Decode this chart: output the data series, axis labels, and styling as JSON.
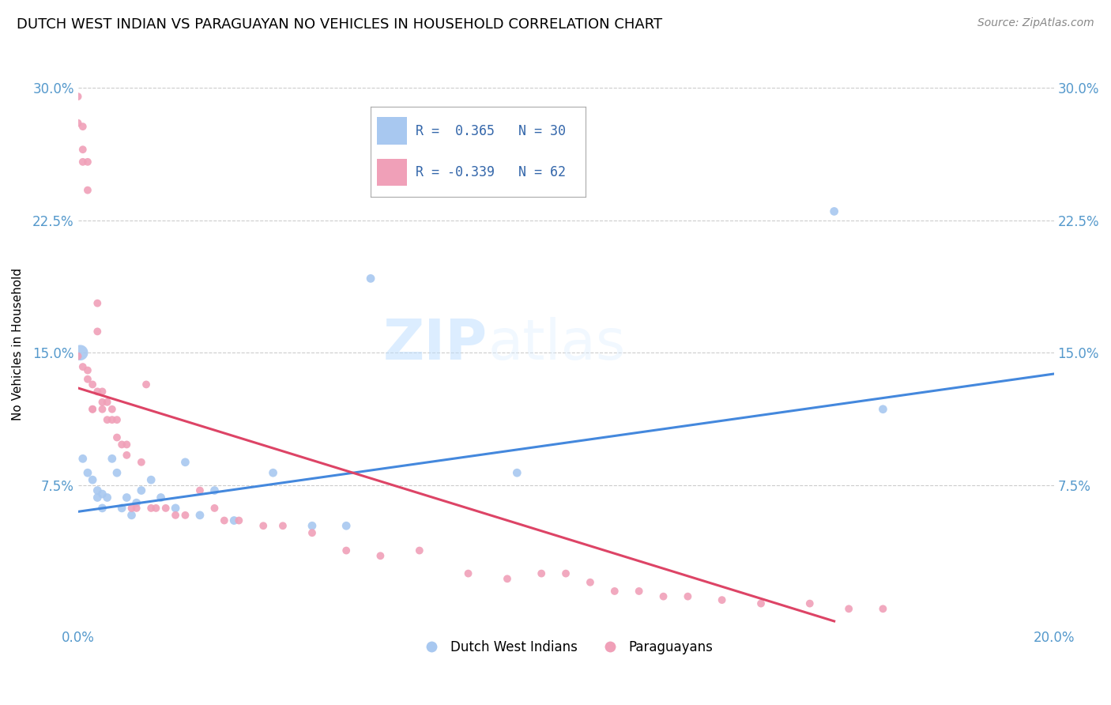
{
  "title": "DUTCH WEST INDIAN VS PARAGUAYAN NO VEHICLES IN HOUSEHOLD CORRELATION CHART",
  "source": "Source: ZipAtlas.com",
  "ylabel": "No Vehicles in Household",
  "x_min": 0.0,
  "x_max": 0.2,
  "y_min": -0.005,
  "y_max": 0.315,
  "y_ticks": [
    0.075,
    0.15,
    0.225,
    0.3
  ],
  "x_ticks": [
    0.0,
    0.2
  ],
  "legend_blue_r": "0.365",
  "legend_blue_n": "30",
  "legend_pink_r": "-0.339",
  "legend_pink_n": "62",
  "blue_color": "#A8C8F0",
  "pink_color": "#F0A0B8",
  "blue_line_color": "#4488DD",
  "pink_line_color": "#DD4466",
  "grid_color": "#CCCCCC",
  "watermark_zip": "ZIP",
  "watermark_atlas": "atlas",
  "blue_scatter_x": [
    0.0005,
    0.001,
    0.002,
    0.003,
    0.004,
    0.004,
    0.005,
    0.005,
    0.006,
    0.007,
    0.008,
    0.009,
    0.01,
    0.011,
    0.012,
    0.013,
    0.015,
    0.017,
    0.02,
    0.022,
    0.025,
    0.028,
    0.032,
    0.04,
    0.048,
    0.055,
    0.06,
    0.09,
    0.155,
    0.165
  ],
  "blue_scatter_y": [
    0.15,
    0.09,
    0.082,
    0.078,
    0.072,
    0.068,
    0.07,
    0.062,
    0.068,
    0.09,
    0.082,
    0.062,
    0.068,
    0.058,
    0.065,
    0.072,
    0.078,
    0.068,
    0.062,
    0.088,
    0.058,
    0.072,
    0.055,
    0.082,
    0.052,
    0.052,
    0.192,
    0.082,
    0.23,
    0.118
  ],
  "blue_scatter_sizes": [
    200,
    60,
    60,
    60,
    60,
    60,
    60,
    60,
    60,
    60,
    60,
    60,
    60,
    60,
    60,
    60,
    60,
    60,
    60,
    60,
    60,
    60,
    60,
    60,
    60,
    60,
    60,
    60,
    60,
    60
  ],
  "pink_scatter_x": [
    0.0,
    0.0,
    0.0,
    0.001,
    0.001,
    0.001,
    0.001,
    0.002,
    0.002,
    0.002,
    0.002,
    0.003,
    0.003,
    0.003,
    0.004,
    0.004,
    0.004,
    0.005,
    0.005,
    0.005,
    0.006,
    0.006,
    0.007,
    0.007,
    0.008,
    0.008,
    0.009,
    0.01,
    0.01,
    0.011,
    0.012,
    0.013,
    0.014,
    0.015,
    0.016,
    0.018,
    0.02,
    0.022,
    0.025,
    0.028,
    0.03,
    0.033,
    0.038,
    0.042,
    0.048,
    0.055,
    0.062,
    0.07,
    0.08,
    0.088,
    0.095,
    0.1,
    0.105,
    0.11,
    0.115,
    0.12,
    0.125,
    0.132,
    0.14,
    0.15,
    0.158,
    0.165
  ],
  "pink_scatter_y": [
    0.295,
    0.28,
    0.148,
    0.278,
    0.265,
    0.258,
    0.142,
    0.258,
    0.242,
    0.14,
    0.135,
    0.132,
    0.118,
    0.118,
    0.178,
    0.162,
    0.128,
    0.128,
    0.122,
    0.118,
    0.122,
    0.112,
    0.118,
    0.112,
    0.112,
    0.102,
    0.098,
    0.098,
    0.092,
    0.062,
    0.062,
    0.088,
    0.132,
    0.062,
    0.062,
    0.062,
    0.058,
    0.058,
    0.072,
    0.062,
    0.055,
    0.055,
    0.052,
    0.052,
    0.048,
    0.038,
    0.035,
    0.038,
    0.025,
    0.022,
    0.025,
    0.025,
    0.02,
    0.015,
    0.015,
    0.012,
    0.012,
    0.01,
    0.008,
    0.008,
    0.005,
    0.005
  ],
  "blue_line_x": [
    0.0,
    0.2
  ],
  "blue_line_y_start": 0.06,
  "blue_line_y_end": 0.138,
  "pink_line_x": [
    0.0,
    0.155
  ],
  "pink_line_y_start": 0.13,
  "pink_line_y_end": -0.002,
  "legend_label_blue": "Dutch West Indians",
  "legend_label_pink": "Paraguayans",
  "title_fontsize": 13,
  "axis_label_fontsize": 11,
  "tick_fontsize": 12,
  "legend_fontsize": 12,
  "source_fontsize": 10,
  "watermark_fontsize": 52,
  "pink_marker_size": 50
}
